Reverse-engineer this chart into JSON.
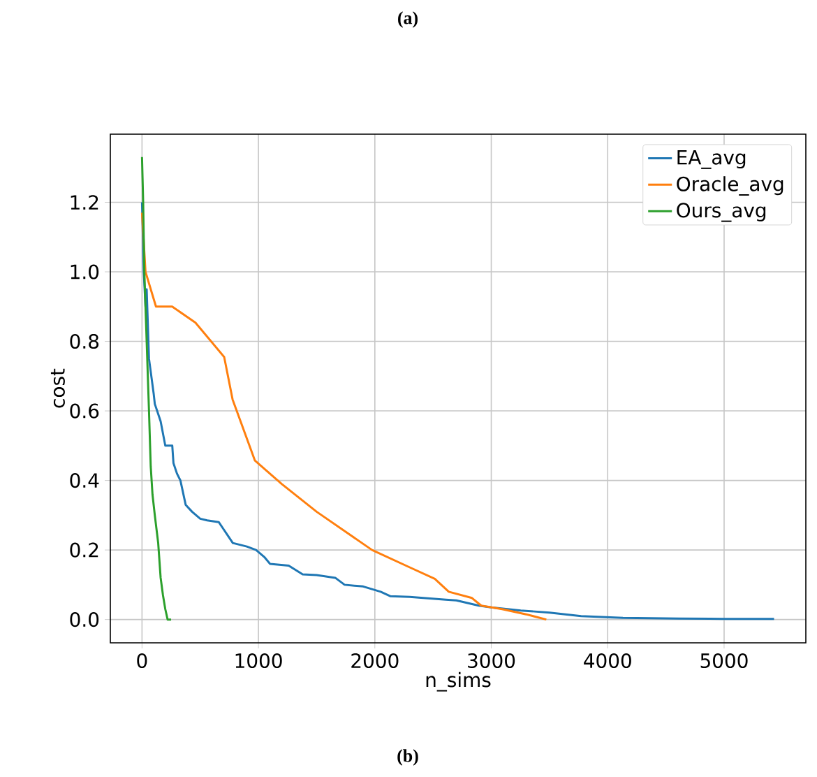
{
  "chart_data": {
    "type": "line",
    "xlabel": "n_sims",
    "ylabel": "cost",
    "annotations": [
      "(a)",
      "(b)"
    ],
    "xlim": [
      -272,
      5702
    ],
    "ylim": [
      -0.067,
      1.396
    ],
    "xticks": [
      0,
      1000,
      2000,
      3000,
      4000,
      5000
    ],
    "yticks": [
      {
        "value": 0,
        "label": "0.0"
      },
      0.2,
      0.4,
      0.6,
      0.8,
      {
        "value": 1,
        "label": "1.0"
      },
      1.2
    ],
    "grid": true,
    "legend": "top right",
    "line_style": "solid",
    "marker": "none",
    "series": [
      {
        "name": "EA_avg",
        "color": "#1f77b4",
        "x": [
          0,
          15,
          30,
          40,
          50,
          60,
          80,
          100,
          110,
          130,
          160,
          200,
          210,
          260,
          270,
          300,
          330,
          375,
          430,
          500,
          560,
          660,
          700,
          780,
          900,
          980,
          1050,
          1100,
          1260,
          1380,
          1500,
          1660,
          1740,
          1900,
          2050,
          2135,
          2300,
          2610,
          2700,
          2893,
          3000,
          3253,
          3500,
          3772,
          4131,
          4611,
          5000,
          5429
        ],
        "values": [
          1.2,
          1.0,
          0.9,
          0.95,
          0.85,
          0.75,
          0.7,
          0.65,
          0.62,
          0.6,
          0.57,
          0.5,
          0.5,
          0.5,
          0.45,
          0.42,
          0.4,
          0.33,
          0.31,
          0.29,
          0.285,
          0.28,
          0.26,
          0.22,
          0.21,
          0.2,
          0.18,
          0.16,
          0.155,
          0.13,
          0.128,
          0.12,
          0.1,
          0.095,
          0.08,
          0.067,
          0.065,
          0.057,
          0.055,
          0.04,
          0.035,
          0.026,
          0.02,
          0.01,
          0.005,
          0.003,
          0.002,
          0.002
        ]
      },
      {
        "name": "Oracle_avg",
        "color": "#ff7f0e",
        "x": [
          0,
          30,
          120,
          259,
          459,
          706,
          778,
          970,
          1200,
          1500,
          1976,
          2300,
          2515,
          2635,
          2834,
          2914,
          3093,
          3300,
          3473
        ],
        "values": [
          1.17,
          1.0,
          0.9,
          0.9,
          0.854,
          0.755,
          0.633,
          0.457,
          0.39,
          0.31,
          0.2,
          0.15,
          0.117,
          0.08,
          0.062,
          0.04,
          0.03,
          0.015,
          0.0
        ]
      },
      {
        "name": "Ours_avg",
        "color": "#2ca02c",
        "x": [
          0,
          10,
          20,
          35,
          50,
          60,
          75,
          90,
          110,
          139,
          160,
          180,
          200,
          220,
          250
        ],
        "values": [
          1.33,
          1.2,
          1.0,
          0.85,
          0.7,
          0.6,
          0.44,
          0.36,
          0.3,
          0.22,
          0.12,
          0.07,
          0.03,
          0.0,
          0.0
        ]
      }
    ]
  }
}
